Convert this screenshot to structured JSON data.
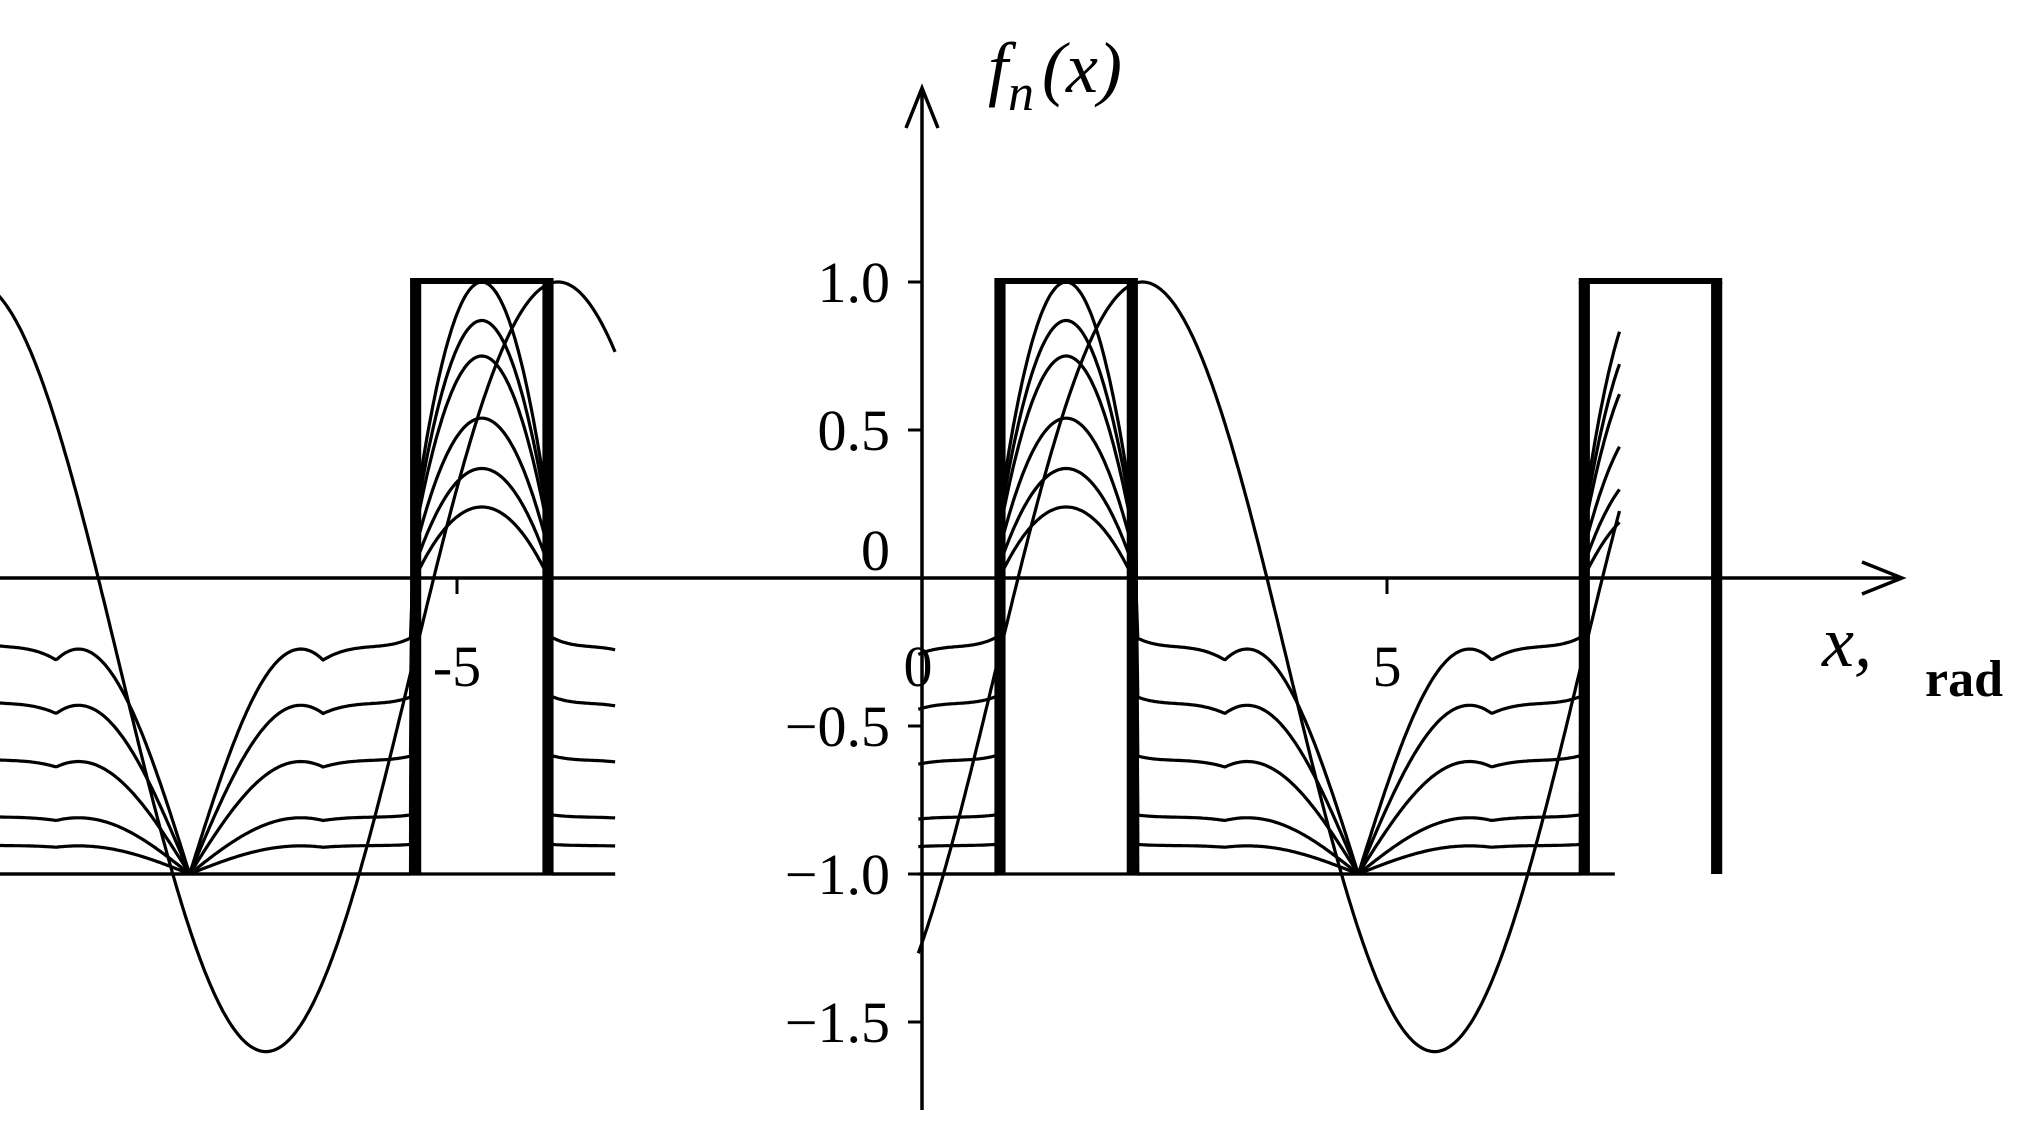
{
  "chart_data": {
    "type": "line",
    "title": "",
    "ylabel": "f_n(x)",
    "ylabel_parts": {
      "f": "f",
      "sub": "n",
      "arg": "(x)"
    },
    "xlabel": "x,",
    "xunit": "rad",
    "xlim": [
      -11.5,
      12.3
    ],
    "ylim": [
      -1.75,
      1.75
    ],
    "x_ticks": [
      -5,
      0,
      5
    ],
    "x_tick_labels": [
      "-5",
      "0",
      "5"
    ],
    "y_ticks": [
      1.0,
      0.5,
      0,
      -0.5,
      -1.0,
      -1.5
    ],
    "y_tick_labels": [
      "1.0",
      "0.5",
      "0",
      "−0.5",
      "−1.0",
      "−1.5"
    ],
    "period": 6.2832,
    "pulse_window": [
      0.8,
      2.3
    ],
    "harmonic_amplitudes": [
      0.2,
      0.4,
      0.6,
      0.8,
      0.9,
      1.0
    ],
    "series": [
      {
        "name": "",
        "samples": "Fourier partial sums of a periodic rectangular pulse train (level 1 on pulse window, -1 elsewhere)"
      }
    ],
    "grid": false,
    "legend": "none"
  }
}
